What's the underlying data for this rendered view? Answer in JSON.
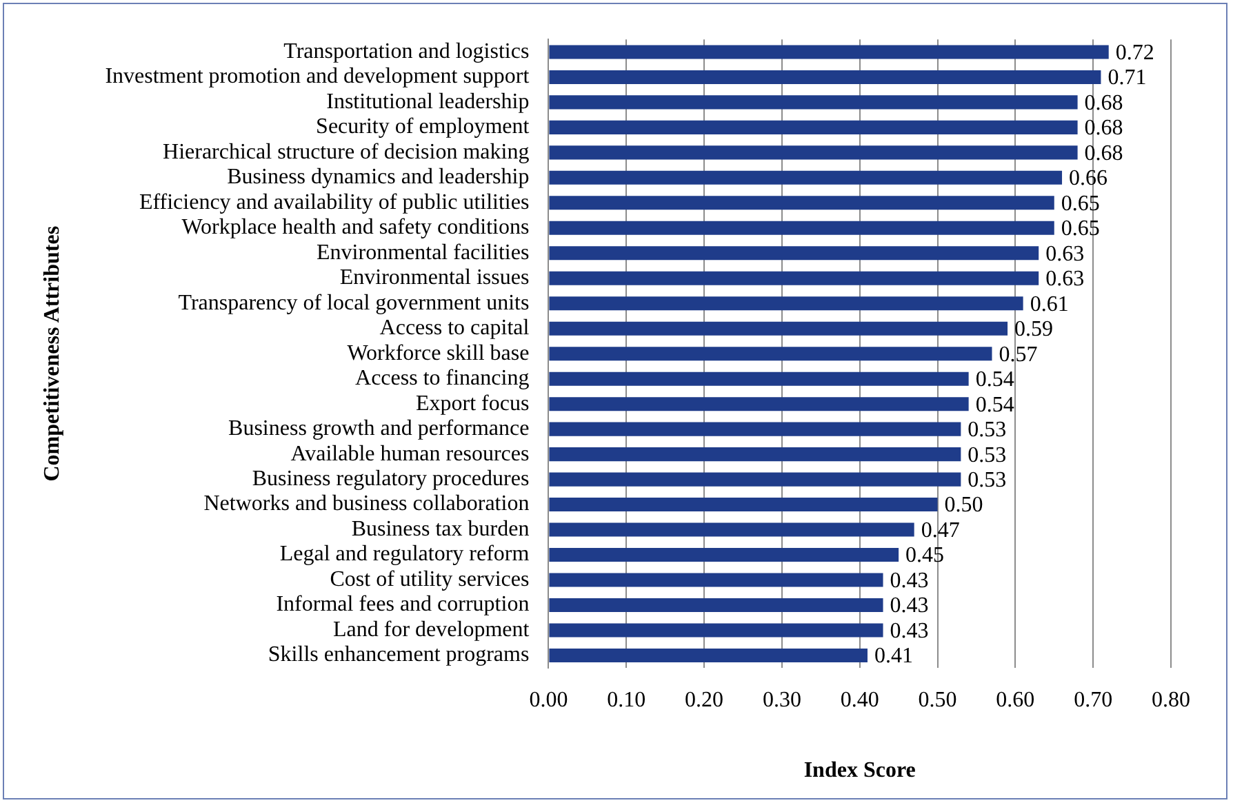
{
  "chart_data": {
    "type": "bar",
    "orientation": "horizontal",
    "xlabel": "Index Score",
    "ylabel": "Competitiveness Attributes",
    "categories": [
      "Transportation and logistics",
      "Investment promotion and development support",
      "Institutional leadership",
      "Security of employment",
      "Hierarchical structure of decision making",
      "Business dynamics and leadership",
      "Efficiency and availability of public utilities",
      "Workplace health and safety conditions",
      "Environmental facilities",
      "Environmental issues",
      "Transparency of local government units",
      "Access to capital",
      "Workforce skill base",
      "Access to financing",
      "Export focus",
      "Business growth and performance",
      "Available human resources",
      "Business regulatory procedures",
      "Networks and business collaboration",
      "Business tax burden",
      "Legal and regulatory reform",
      "Cost of utility services",
      "Informal fees and corruption",
      "Land for development",
      "Skills enhancement programs"
    ],
    "values": [
      0.72,
      0.71,
      0.68,
      0.68,
      0.68,
      0.66,
      0.65,
      0.65,
      0.63,
      0.63,
      0.61,
      0.59,
      0.57,
      0.54,
      0.54,
      0.53,
      0.53,
      0.53,
      0.5,
      0.47,
      0.45,
      0.43,
      0.43,
      0.43,
      0.41
    ],
    "value_labels": [
      "0.72",
      "0.71",
      "0.68",
      "0.68",
      "0.68",
      "0.66",
      "0.65",
      "0.65",
      "0.63",
      "0.63",
      "0.61",
      "0.59",
      "0.57",
      "0.54",
      "0.54",
      "0.53",
      "0.53",
      "0.53",
      "0.50",
      "0.47",
      "0.45",
      "0.43",
      "0.43",
      "0.43",
      "0.41"
    ],
    "color": "#1f3c8a",
    "xlim": [
      0,
      0.8
    ],
    "xticks": [
      {
        "value": 0,
        "label": "0.00"
      },
      {
        "value": 0.1,
        "label": "0.10"
      },
      {
        "value": 0.2,
        "label": "0.20"
      },
      {
        "value": 0.3,
        "label": "0.30"
      },
      {
        "value": 0.4,
        "label": "0.40"
      },
      {
        "value": 0.5,
        "label": "0.50"
      },
      {
        "value": 0.6,
        "label": "0.60"
      },
      {
        "value": 0.7,
        "label": "0.70"
      },
      {
        "value": 0.8,
        "label": "0.80"
      }
    ],
    "grid": "x",
    "legend": false
  }
}
